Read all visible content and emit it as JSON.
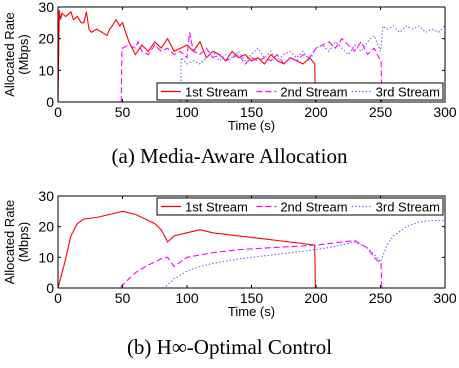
{
  "captions": [
    "(a) Media-Aware Allocation",
    "(b) H∞-Optimal Control"
  ],
  "colors": {
    "stream1": "#ff0000",
    "stream2": "#ff00ff",
    "stream3": "#6666ff",
    "axis": "#000000"
  },
  "chart_data": [
    {
      "type": "line",
      "title": "",
      "xlabel": "Time (s)",
      "ylabel": "Allocated Rate\n(Mbps)",
      "xlim": [
        0,
        300
      ],
      "ylim": [
        0,
        30
      ],
      "xticks": [
        0,
        50,
        100,
        150,
        200,
        250,
        300
      ],
      "yticks": [
        0,
        10,
        20,
        30
      ],
      "grid": false,
      "legend_position": "bottom-right",
      "series": [
        {
          "name": "1st Stream",
          "style": "solid",
          "color": "#ff0000",
          "x": [
            0,
            1,
            2,
            3,
            6,
            10,
            12,
            15,
            18,
            20,
            22,
            24,
            26,
            30,
            34,
            38,
            40,
            42,
            45,
            48,
            50,
            55,
            60,
            65,
            70,
            75,
            80,
            85,
            90,
            95,
            100,
            105,
            110,
            115,
            120,
            125,
            130,
            135,
            140,
            145,
            150,
            155,
            160,
            165,
            170,
            175,
            180,
            185,
            190,
            195,
            199,
            199.5,
            200
          ],
          "y": [
            0,
            29,
            26,
            28,
            27,
            28.5,
            26,
            27,
            25,
            25,
            28.5,
            23,
            22,
            23,
            22,
            21,
            23,
            24,
            26,
            24,
            25,
            19,
            15,
            18,
            16,
            19,
            17,
            20,
            16,
            17,
            18,
            16,
            19,
            14,
            16,
            15,
            13,
            16,
            14,
            15,
            13,
            14,
            12,
            15,
            13,
            12,
            14,
            13,
            12,
            14,
            12,
            0,
            0
          ]
        },
        {
          "name": "2nd Stream",
          "style": "dashed",
          "color": "#ff00ff",
          "x": [
            0,
            49,
            49.5,
            50,
            55,
            60,
            62,
            65,
            70,
            75,
            80,
            85,
            90,
            95,
            100,
            102,
            105,
            110,
            115,
            120,
            125,
            130,
            135,
            140,
            145,
            150,
            155,
            160,
            165,
            170,
            175,
            180,
            185,
            190,
            195,
            200,
            205,
            210,
            215,
            220,
            225,
            230,
            235,
            240,
            245,
            250,
            250.5,
            251,
            300
          ],
          "y": [
            0,
            0,
            17,
            17,
            18,
            17,
            19,
            16,
            15,
            18,
            16,
            17,
            15,
            16,
            14,
            22,
            16,
            15,
            17,
            14,
            15,
            13,
            14,
            15,
            12,
            14,
            13,
            14,
            13,
            15,
            12,
            14,
            13,
            15,
            14,
            17,
            18,
            19,
            17,
            20,
            18,
            16,
            19,
            15,
            17,
            13,
            13,
            0,
            0
          ]
        },
        {
          "name": "3rd Stream",
          "style": "dotted",
          "color": "#6666ff",
          "x": [
            0,
            95,
            95.5,
            100,
            105,
            110,
            115,
            120,
            125,
            130,
            135,
            140,
            145,
            150,
            155,
            160,
            165,
            170,
            175,
            180,
            185,
            190,
            195,
            200,
            205,
            210,
            215,
            220,
            225,
            230,
            235,
            240,
            245,
            250,
            252,
            255,
            260,
            265,
            270,
            275,
            280,
            285,
            290,
            295,
            300
          ],
          "y": [
            0,
            0,
            14,
            12,
            13,
            12,
            14,
            16,
            13,
            15,
            14,
            16,
            13,
            15,
            17,
            14,
            16,
            13,
            15,
            16,
            14,
            16,
            13,
            17,
            18,
            16,
            19,
            17,
            15,
            18,
            16,
            19,
            21,
            16,
            24,
            23,
            24,
            22,
            24,
            23,
            24,
            22,
            23,
            22,
            24
          ]
        }
      ]
    },
    {
      "type": "line",
      "title": "",
      "xlabel": "Time (s)",
      "ylabel": "Allocated Rate\n(Mbps)",
      "xlim": [
        0,
        300
      ],
      "ylim": [
        0,
        30
      ],
      "xticks": [
        0,
        50,
        100,
        150,
        200,
        250,
        300
      ],
      "yticks": [
        0,
        10,
        20,
        30
      ],
      "grid": false,
      "legend_position": "top-right",
      "series": [
        {
          "name": "1st Stream",
          "style": "solid",
          "color": "#ff0000",
          "x": [
            0,
            5,
            10,
            15,
            20,
            30,
            40,
            50,
            60,
            70,
            75,
            80,
            85,
            90,
            100,
            110,
            120,
            140,
            160,
            180,
            199,
            199.5,
            200,
            300
          ],
          "y": [
            0,
            8,
            17,
            21,
            22.5,
            23,
            24,
            25,
            24,
            22,
            21,
            19,
            15,
            17,
            18,
            19,
            18,
            17,
            16,
            15,
            14,
            0,
            0,
            0
          ]
        },
        {
          "name": "2nd Stream",
          "style": "dashed",
          "color": "#ff00ff",
          "x": [
            0,
            48,
            50,
            55,
            60,
            70,
            80,
            85,
            90,
            100,
            120,
            140,
            160,
            180,
            200,
            220,
            230,
            240,
            245,
            250,
            250.5,
            251,
            300
          ],
          "y": [
            0,
            0,
            1,
            3,
            5,
            7.5,
            9.5,
            10,
            7,
            10,
            11.5,
            12.5,
            13,
            13.5,
            14,
            15,
            15.5,
            13,
            10,
            8,
            8,
            0,
            0
          ]
        },
        {
          "name": "3rd Stream",
          "style": "dotted",
          "color": "#6666ff",
          "x": [
            0,
            82,
            85,
            90,
            100,
            110,
            120,
            140,
            160,
            180,
            200,
            220,
            230,
            240,
            245,
            250,
            255,
            260,
            270,
            280,
            290,
            300
          ],
          "y": [
            0,
            0,
            1,
            3,
            5.5,
            7,
            8,
            9.5,
            10.5,
            11.5,
            12.5,
            14,
            15,
            13,
            11,
            8.5,
            14,
            17,
            20,
            21.5,
            22,
            22
          ]
        }
      ]
    }
  ]
}
